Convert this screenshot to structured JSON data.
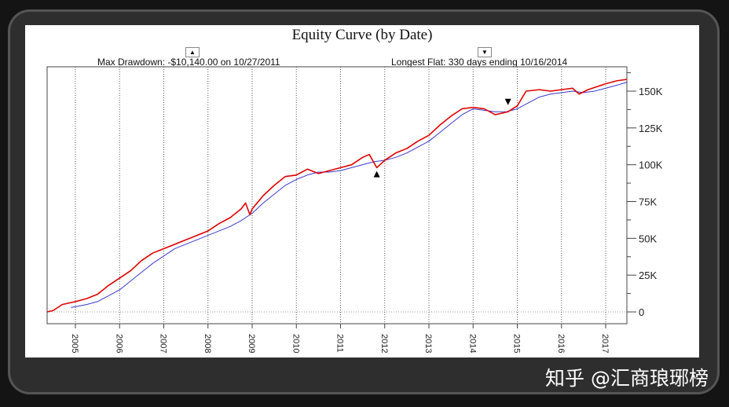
{
  "watermark": "知乎 @汇商琅琊榜",
  "chart_data": {
    "type": "line",
    "title": "Equity Curve (by Date)",
    "annotations": {
      "max_drawdown": "Max Drawdown: -$10,140.00 on 10/27/2011",
      "longest_flat": "Longest Flat: 330 days ending 10/16/2014",
      "max_drawdown_marker": {
        "x": 2011.82,
        "y": 100000,
        "symbol": "▲"
      },
      "longest_flat_marker": {
        "x": 2014.79,
        "y": 140000,
        "symbol": "▼"
      }
    },
    "xlim": [
      2004.36,
      2017.48
    ],
    "ylim": [
      -8000,
      167000
    ],
    "x_ticks": [
      "2005",
      "2006",
      "2007",
      "2008",
      "2009",
      "2010",
      "2011",
      "2012",
      "2013",
      "2014",
      "2015",
      "2016",
      "2017"
    ],
    "y_ticks": [
      0,
      25000,
      50000,
      75000,
      100000,
      125000,
      150000
    ],
    "y_tick_labels": [
      "0",
      "25K",
      "50K",
      "75K",
      "100K",
      "125K",
      "150K"
    ],
    "grid": "vertical dotted",
    "colors": {
      "equity": "#e00000",
      "average": "#3a3ad0"
    },
    "series": [
      {
        "x": [
          2004.36,
          2004.5,
          2004.7,
          2005.0,
          2005.25,
          2005.5,
          2005.75,
          2006.0,
          2006.25,
          2006.5,
          2006.75,
          2007.0,
          2007.25,
          2007.5,
          2007.75,
          2008.0,
          2008.25,
          2008.5,
          2008.75,
          2008.85,
          2008.95,
          2009.0,
          2009.25,
          2009.5,
          2009.75,
          2010.0,
          2010.25,
          2010.5,
          2010.75,
          2011.0,
          2011.25,
          2011.5,
          2011.65,
          2011.82,
          2012.0,
          2012.25,
          2012.5,
          2012.75,
          2013.0,
          2013.25,
          2013.5,
          2013.75,
          2014.0,
          2014.25,
          2014.5,
          2014.79,
          2015.0,
          2015.2,
          2015.5,
          2015.75,
          2016.0,
          2016.25,
          2016.4,
          2016.6,
          2016.8,
          2017.0,
          2017.25,
          2017.48
        ],
        "y": [
          0,
          1000,
          5000,
          7000,
          9000,
          12000,
          18000,
          23000,
          28000,
          35000,
          40000,
          43000,
          46000,
          49000,
          52000,
          55000,
          60000,
          64000,
          70000,
          74000,
          66000,
          70000,
          79000,
          86000,
          92000,
          93000,
          97000,
          94000,
          96000,
          98000,
          100000,
          105000,
          107000,
          98000,
          103000,
          108000,
          111000,
          116000,
          120000,
          127000,
          133000,
          138000,
          139000,
          138000,
          134000,
          136000,
          140000,
          150000,
          151000,
          150000,
          151000,
          152000,
          148000,
          151000,
          153000,
          155000,
          157000,
          158000
        ]
      },
      {
        "x": [
          2004.9,
          2005.25,
          2005.5,
          2005.75,
          2006.0,
          2006.25,
          2006.5,
          2006.75,
          2007.0,
          2007.25,
          2007.5,
          2007.75,
          2008.0,
          2008.25,
          2008.5,
          2008.75,
          2009.0,
          2009.25,
          2009.5,
          2009.75,
          2010.0,
          2010.25,
          2010.5,
          2010.75,
          2011.0,
          2011.25,
          2011.5,
          2011.75,
          2012.0,
          2012.25,
          2012.5,
          2012.75,
          2013.0,
          2013.25,
          2013.5,
          2013.75,
          2014.0,
          2014.25,
          2014.5,
          2014.75,
          2015.0,
          2015.25,
          2015.5,
          2015.75,
          2016.0,
          2016.25,
          2016.5,
          2016.75,
          2017.0,
          2017.25,
          2017.48
        ],
        "y": [
          3000,
          5000,
          7000,
          11000,
          15000,
          21000,
          27000,
          33000,
          38000,
          43000,
          46000,
          49000,
          52000,
          55000,
          58000,
          62000,
          67000,
          74000,
          80000,
          86000,
          90000,
          93000,
          95000,
          95000,
          96000,
          98000,
          100000,
          102000,
          103000,
          105000,
          108000,
          112000,
          116000,
          122000,
          128000,
          134000,
          138000,
          137000,
          136000,
          136000,
          138000,
          142000,
          146000,
          148000,
          149000,
          150000,
          149000,
          150000,
          152000,
          154000,
          156000
        ]
      }
    ]
  }
}
